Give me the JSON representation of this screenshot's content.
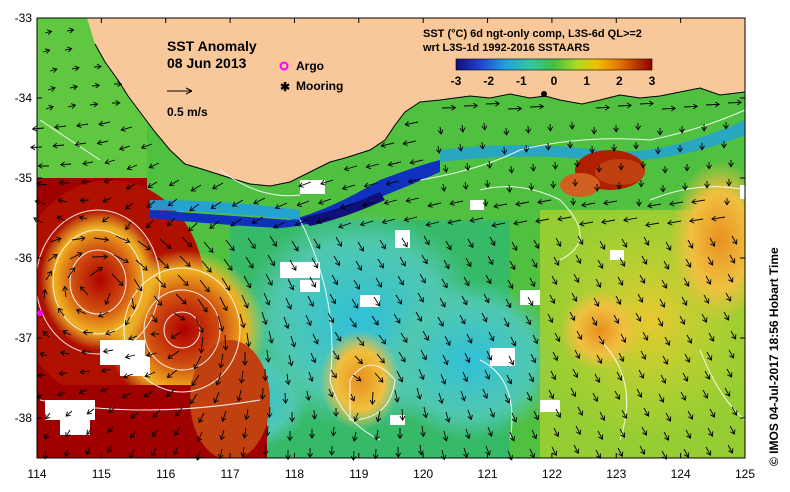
{
  "title": "SST Anomaly",
  "date": "08 Jun 2013",
  "vector_scale_label": "0.5 m/s",
  "legend": {
    "argo_label": "Argo",
    "mooring_label": "Mooring"
  },
  "colorbar": {
    "title_line1": "SST (°C) 6d ngt-only comp, L3S-6d QL>=2",
    "title_line2": "wrt L3S-1d 1992-2016 SSTAARS",
    "ticks": [
      "-3",
      "-2",
      "-1",
      "0",
      "1",
      "2",
      "3"
    ],
    "range": [
      -3,
      3
    ]
  },
  "axes": {
    "x_ticks": [
      "114",
      "115",
      "116",
      "117",
      "118",
      "119",
      "120",
      "121",
      "122",
      "123",
      "124",
      "125"
    ],
    "y_ticks": [
      "-33",
      "-34",
      "-35",
      "-36",
      "-37",
      "-38"
    ],
    "lon_range": [
      114,
      125
    ],
    "lat_range": [
      -38.5,
      -33
    ]
  },
  "credit": "© IMOS 04-Jul-2017 18:56 Hobart Time",
  "colors": {
    "land": "#f8c89a",
    "cold": "#1030c0",
    "warm": "#a00000",
    "neutral": "#40c040",
    "argo_marker": "#ff00ff",
    "mooring_marker": "#000000"
  }
}
